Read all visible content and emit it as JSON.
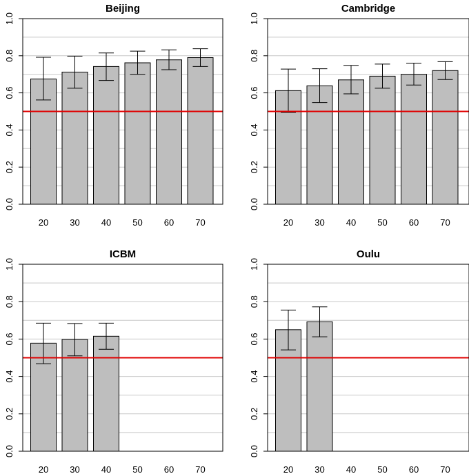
{
  "chart_data": [
    {
      "type": "bar",
      "title": "Beijing",
      "categories": [
        "20",
        "30",
        "40",
        "50",
        "60",
        "70"
      ],
      "values": [
        0.675,
        0.712,
        0.742,
        0.762,
        0.778,
        0.79
      ],
      "error_low": [
        0.562,
        0.625,
        0.667,
        0.7,
        0.725,
        0.742
      ],
      "error_high": [
        0.792,
        0.798,
        0.815,
        0.825,
        0.832,
        0.838
      ],
      "ylim": [
        0,
        1
      ],
      "yticks": [
        "0.0",
        "0.2",
        "0.4",
        "0.6",
        "0.8",
        "1.0"
      ],
      "reference_line": 0.5,
      "grid": true,
      "reference_color": "#e00000",
      "bar_color": "#bebebe"
    },
    {
      "type": "bar",
      "title": "Cambridge",
      "categories": [
        "20",
        "30",
        "40",
        "50",
        "60",
        "70"
      ],
      "values": [
        0.612,
        0.638,
        0.67,
        0.69,
        0.7,
        0.72
      ],
      "error_low": [
        0.495,
        0.548,
        0.595,
        0.625,
        0.642,
        0.672
      ],
      "error_high": [
        0.728,
        0.73,
        0.748,
        0.755,
        0.76,
        0.768
      ],
      "ylim": [
        0,
        1
      ],
      "yticks": [
        "0.0",
        "0.2",
        "0.4",
        "0.6",
        "0.8",
        "1.0"
      ],
      "reference_line": 0.5,
      "grid": true,
      "reference_color": "#e00000",
      "bar_color": "#bebebe"
    },
    {
      "type": "bar",
      "title": "ICBM",
      "categories": [
        "20",
        "30",
        "40",
        "50",
        "60",
        "70"
      ],
      "values": [
        0.578,
        0.598,
        0.615,
        null,
        null,
        null
      ],
      "error_low": [
        0.468,
        0.51,
        0.545,
        null,
        null,
        null
      ],
      "error_high": [
        0.685,
        0.683,
        0.685,
        null,
        null,
        null
      ],
      "ylim": [
        0,
        1
      ],
      "yticks": [
        "0.0",
        "0.2",
        "0.4",
        "0.6",
        "0.8",
        "1.0"
      ],
      "reference_line": 0.5,
      "grid": true,
      "reference_color": "#e00000",
      "bar_color": "#bebebe"
    },
    {
      "type": "bar",
      "title": "Oulu",
      "categories": [
        "20",
        "30",
        "40",
        "50",
        "60",
        "70"
      ],
      "values": [
        0.65,
        0.692,
        null,
        null,
        null,
        null
      ],
      "error_low": [
        0.542,
        0.612,
        null,
        null,
        null,
        null
      ],
      "error_high": [
        0.755,
        0.772,
        null,
        null,
        null,
        null
      ],
      "ylim": [
        0,
        1
      ],
      "yticks": [
        "0.0",
        "0.2",
        "0.4",
        "0.6",
        "0.8",
        "1.0"
      ],
      "reference_line": 0.5,
      "grid": true,
      "reference_color": "#e00000",
      "bar_color": "#bebebe"
    }
  ]
}
